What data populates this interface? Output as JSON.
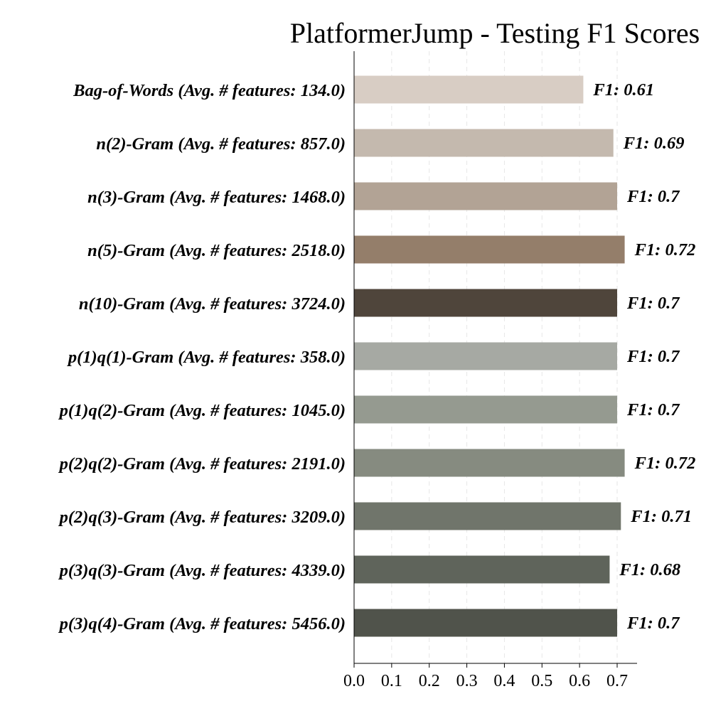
{
  "chart_data": {
    "type": "bar",
    "orientation": "horizontal",
    "title": "PlatformerJump - Testing F1 Scores",
    "xlabel": "",
    "ylabel": "",
    "xlim": [
      0,
      0.76
    ],
    "grid": "vertical dashed",
    "x_ticks": [
      "0.0",
      "0.1",
      "0.2",
      "0.3",
      "0.4",
      "0.5",
      "0.6",
      "0.7"
    ],
    "categories": [
      "Bag-of-Words (Avg. # features: 134.0)",
      "n(2)-Gram (Avg. # features: 857.0)",
      "n(3)-Gram (Avg. # features: 1468.0)",
      "n(5)-Gram (Avg. # features: 2518.0)",
      "n(10)-Gram (Avg. # features: 3724.0)",
      "p(1)q(1)-Gram (Avg. # features: 358.0)",
      "p(1)q(2)-Gram (Avg. # features: 1045.0)",
      "p(2)q(2)-Gram (Avg. # features: 2191.0)",
      "p(2)q(3)-Gram (Avg. # features: 3209.0)",
      "p(3)q(3)-Gram (Avg. # features: 4339.0)",
      "p(3)q(4)-Gram (Avg. # features: 5456.0)"
    ],
    "values": [
      0.61,
      0.69,
      0.7,
      0.72,
      0.7,
      0.7,
      0.7,
      0.72,
      0.71,
      0.68,
      0.7
    ],
    "data_labels": [
      "F1: 0.61",
      "F1: 0.69",
      "F1: 0.7",
      "F1: 0.72",
      "F1: 0.7",
      "F1: 0.7",
      "F1: 0.7",
      "F1: 0.72",
      "F1: 0.71",
      "F1: 0.68",
      "F1: 0.7"
    ],
    "colors": [
      "#d8cdc4",
      "#c4b9ae",
      "#b2a395",
      "#947e6a",
      "#4f453b",
      "#a6a9a3",
      "#959a90",
      "#868b80",
      "#70756b",
      "#5f645b",
      "#50534b"
    ]
  }
}
